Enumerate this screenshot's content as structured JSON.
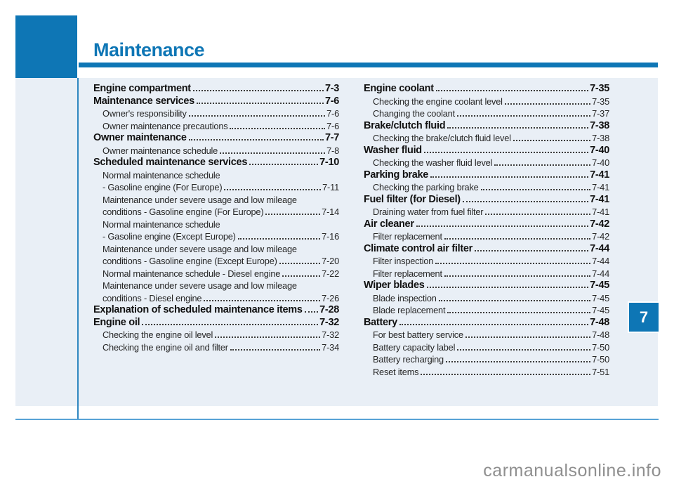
{
  "header": {
    "title": "Maintenance",
    "chapter_number": "7"
  },
  "watermark": "carmanualsonline.info",
  "colors": {
    "accent_blue": "#0e76b5",
    "panel_background": "#e9eff6",
    "divider_blue": "#2f87c0",
    "bottom_rule_blue": "#58a3d6",
    "text": "#222222",
    "watermark_gray": "#8f8f8f"
  },
  "toc": {
    "left_column": [
      {
        "style": "h1",
        "text": "Engine compartment",
        "page": "7-3"
      },
      {
        "style": "h1",
        "text": "Maintenance services",
        "page": "7-6"
      },
      {
        "style": "sub",
        "text": "Owner's responsibility",
        "page": "7-6"
      },
      {
        "style": "sub",
        "text": "Owner maintenance precautions",
        "page": "7-6"
      },
      {
        "style": "h1",
        "text": "Owner maintenance",
        "page": "7-7"
      },
      {
        "style": "sub",
        "text": "Owner maintenance schedule",
        "page": "7-8"
      },
      {
        "style": "h1",
        "text": "Scheduled maintenance services",
        "page": "7-10"
      },
      {
        "style": "sub",
        "text": "Normal maintenance schedule",
        "page": ""
      },
      {
        "style": "sub",
        "text": "- Gasoline engine (For Europe)",
        "page": "7-11"
      },
      {
        "style": "sub",
        "text": "Maintenance under severe usage and low mileage",
        "page": ""
      },
      {
        "style": "sub",
        "text": "conditions - Gasoline engine (For Europe)",
        "page": "7-14"
      },
      {
        "style": "sub",
        "text": "Normal maintenance schedule",
        "page": ""
      },
      {
        "style": "sub",
        "text": "- Gasoline engine (Except Europe)",
        "page": "7-16"
      },
      {
        "style": "sub",
        "text": "Maintenance under severe usage and low mileage",
        "page": ""
      },
      {
        "style": "sub",
        "text": "conditions - Gasoline engine (Except Europe)",
        "page": "7-20"
      },
      {
        "style": "sub",
        "text": "Normal maintenance schedule - Diesel engine",
        "page": "7-22"
      },
      {
        "style": "sub",
        "text": "Maintenance under severe usage and low mileage",
        "page": ""
      },
      {
        "style": "sub",
        "text": "conditions - Diesel engine",
        "page": "7-26"
      },
      {
        "style": "h1",
        "text": "Explanation of scheduled maintenance items",
        "page": "7-28"
      },
      {
        "style": "h1",
        "text": "Engine oil",
        "page": "7-32"
      },
      {
        "style": "sub",
        "text": "Checking the engine oil level",
        "page": "7-32"
      },
      {
        "style": "sub",
        "text": "Checking the engine oil and filter",
        "page": "7-34"
      }
    ],
    "right_column": [
      {
        "style": "h1",
        "text": "Engine coolant",
        "page": "7-35"
      },
      {
        "style": "sub",
        "text": "Checking the engine coolant level",
        "page": "7-35"
      },
      {
        "style": "sub",
        "text": "Changing the coolant",
        "page": "7-37"
      },
      {
        "style": "h1",
        "text": "Brake/clutch fluid",
        "page": "7-38"
      },
      {
        "style": "sub",
        "text": "Checking the brake/clutch fluid level",
        "page": "7-38"
      },
      {
        "style": "h1",
        "text": "Washer fluid",
        "page": "7-40"
      },
      {
        "style": "sub",
        "text": "Checking the washer fluid level",
        "page": "7-40"
      },
      {
        "style": "h1",
        "text": "Parking brake",
        "page": "7-41"
      },
      {
        "style": "sub",
        "text": "Checking the parking brake",
        "page": "7-41"
      },
      {
        "style": "h1",
        "text": "Fuel filter (for Diesel)",
        "page": "7-41"
      },
      {
        "style": "sub",
        "text": "Draining water from fuel filter",
        "page": "7-41"
      },
      {
        "style": "h1",
        "text": "Air cleaner",
        "page": "7-42"
      },
      {
        "style": "sub",
        "text": "Filter replacement",
        "page": "7-42"
      },
      {
        "style": "h1",
        "text": "Climate control air filter",
        "page": "7-44"
      },
      {
        "style": "sub",
        "text": "Filter inspection",
        "page": "7-44"
      },
      {
        "style": "sub",
        "text": "Filter replacement",
        "page": "7-44"
      },
      {
        "style": "h1",
        "text": "Wiper blades",
        "page": "7-45"
      },
      {
        "style": "sub",
        "text": "Blade inspection",
        "page": "7-45"
      },
      {
        "style": "sub",
        "text": "Blade replacement",
        "page": "7-45"
      },
      {
        "style": "h1",
        "text": "Battery",
        "page": "7-48"
      },
      {
        "style": "sub",
        "text": "For best battery service",
        "page": "7-48"
      },
      {
        "style": "sub",
        "text": "Battery capacity label",
        "page": "7-50"
      },
      {
        "style": "sub",
        "text": "Battery recharging",
        "page": "7-50"
      },
      {
        "style": "sub",
        "text": "Reset items",
        "page": "7-51"
      }
    ]
  }
}
